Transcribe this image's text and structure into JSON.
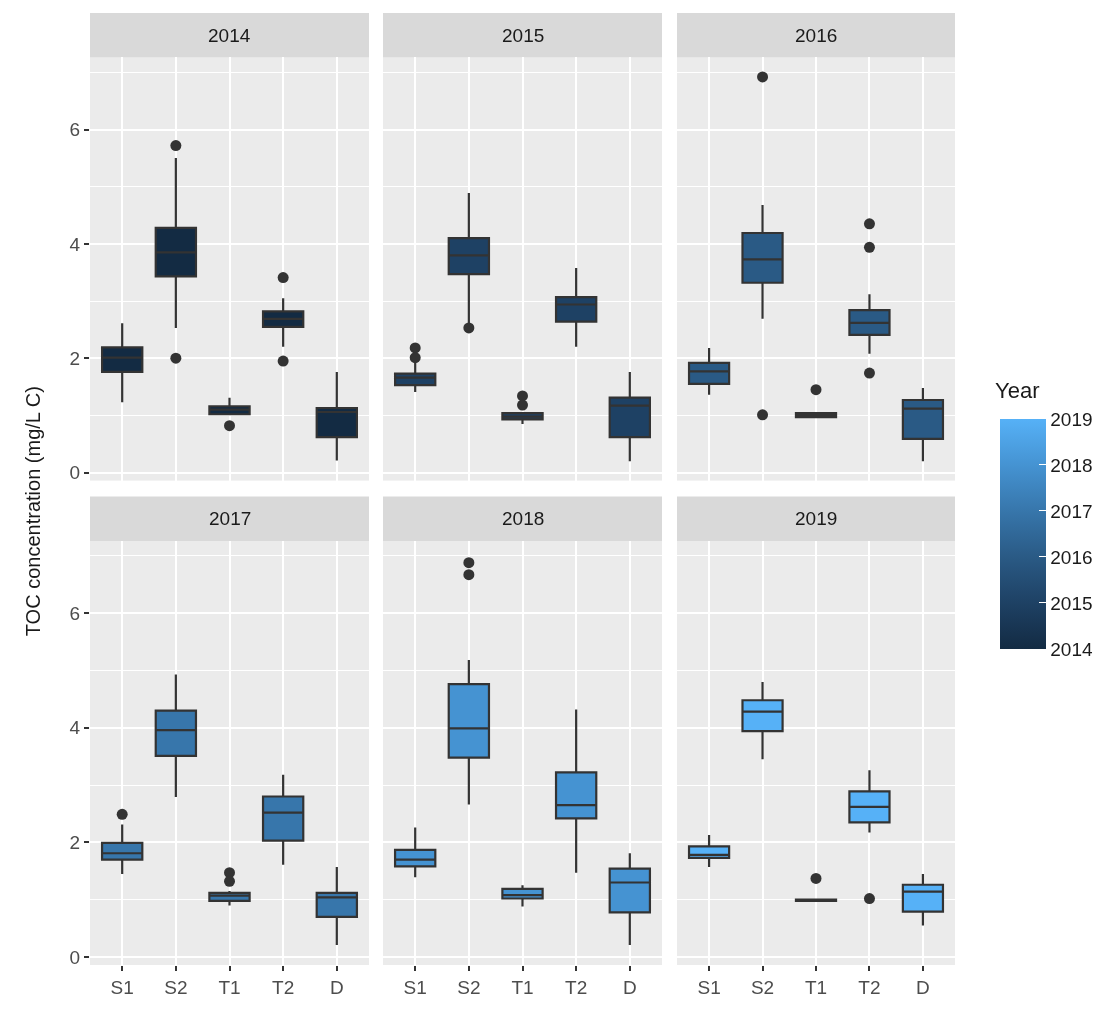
{
  "chart_data": [
    {
      "type": "box",
      "title": "2014",
      "ylabel": "TOC concentration (mg/L C)",
      "categories": [
        "S1",
        "S2",
        "T1",
        "T2",
        "D"
      ],
      "color": "#132b43",
      "boxes": [
        {
          "low": 1.23,
          "q1": 1.76,
          "median": 2.01,
          "q3": 2.19,
          "high": 2.61
        },
        {
          "low": 2.53,
          "q1": 3.43,
          "median": 3.85,
          "q3": 4.28,
          "high": 5.5,
          "outliers": [
            5.72,
            2.0
          ]
        },
        {
          "low": 1.02,
          "q1": 1.02,
          "median": 1.1,
          "q3": 1.16,
          "high": 1.31,
          "outliers": [
            0.82
          ]
        },
        {
          "low": 2.2,
          "q1": 2.55,
          "median": 2.69,
          "q3": 2.82,
          "high": 3.05,
          "outliers": [
            3.41,
            1.95
          ]
        },
        {
          "low": 0.21,
          "q1": 0.62,
          "median": 1.06,
          "q3": 1.13,
          "high": 1.76
        }
      ],
      "ylim": [
        -0.14,
        7.26
      ],
      "yticks": [
        0,
        {
          "value": 1,
          "label": null
        },
        2,
        {
          "value": 3,
          "label": null
        },
        4,
        {
          "value": 5,
          "label": null
        },
        6,
        {
          "value": 7,
          "label": null
        }
      ],
      "grid": true,
      "tick_labels": "y"
    },
    {
      "type": "box",
      "title": "2015",
      "categories": [
        "S1",
        "S2",
        "T1",
        "T2",
        "D"
      ],
      "color": "#1e4164",
      "boxes": [
        {
          "low": 1.41,
          "q1": 1.53,
          "median": 1.66,
          "q3": 1.73,
          "high": 1.93,
          "outliers": [
            2.18,
            2.01
          ]
        },
        {
          "low": 2.6,
          "q1": 3.47,
          "median": 3.8,
          "q3": 4.1,
          "high": 4.89,
          "outliers": [
            2.53
          ]
        },
        {
          "low": 0.85,
          "q1": 0.93,
          "median": 0.98,
          "q3": 1.04,
          "high": 1.04,
          "outliers": [
            1.34,
            1.18
          ]
        },
        {
          "low": 2.2,
          "q1": 2.64,
          "median": 2.94,
          "q3": 3.07,
          "high": 3.58
        },
        {
          "low": 0.2,
          "q1": 0.62,
          "median": 1.17,
          "q3": 1.31,
          "high": 1.76
        }
      ],
      "ylim": [
        -0.14,
        7.26
      ],
      "yticks": [
        0,
        {
          "value": 1,
          "label": null
        },
        2,
        {
          "value": 3,
          "label": null
        },
        4,
        {
          "value": 5,
          "label": null
        },
        6,
        {
          "value": 7,
          "label": null
        }
      ],
      "grid": true,
      "tick_labels": false
    },
    {
      "type": "box",
      "title": "2016",
      "categories": [
        "S1",
        "S2",
        "T1",
        "T2",
        "D"
      ],
      "color": "#2a5a85",
      "boxes": [
        {
          "low": 1.36,
          "q1": 1.55,
          "median": 1.77,
          "q3": 1.92,
          "high": 2.18
        },
        {
          "low": 2.69,
          "q1": 3.32,
          "median": 3.73,
          "q3": 4.19,
          "high": 4.68,
          "outliers": [
            6.92,
            1.01
          ]
        },
        {
          "low": 0.97,
          "q1": 0.97,
          "median": 1.01,
          "q3": 1.04,
          "high": 1.04,
          "outliers": [
            1.45
          ]
        },
        {
          "low": 2.08,
          "q1": 2.41,
          "median": 2.62,
          "q3": 2.84,
          "high": 3.12,
          "outliers": [
            4.35,
            3.94,
            1.74
          ]
        },
        {
          "low": 0.2,
          "q1": 0.59,
          "median": 1.12,
          "q3": 1.27,
          "high": 1.48
        }
      ],
      "ylim": [
        -0.14,
        7.26
      ],
      "yticks": [
        0,
        {
          "value": 1,
          "label": null
        },
        2,
        {
          "value": 3,
          "label": null
        },
        4,
        {
          "value": 5,
          "label": null
        },
        6,
        {
          "value": 7,
          "label": null
        }
      ],
      "grid": true,
      "tick_labels": false
    },
    {
      "type": "box",
      "title": "2017",
      "categories": [
        "S1",
        "S2",
        "T1",
        "T2",
        "D"
      ],
      "color": "#3776ab",
      "boxes": [
        {
          "low": 1.45,
          "q1": 1.7,
          "median": 1.81,
          "q3": 1.99,
          "high": 2.31,
          "outliers": [
            2.49
          ]
        },
        {
          "low": 2.79,
          "q1": 3.51,
          "median": 3.96,
          "q3": 4.3,
          "high": 4.93
        },
        {
          "low": 0.9,
          "q1": 0.98,
          "median": 1.07,
          "q3": 1.12,
          "high": 1.15,
          "outliers": [
            1.47,
            1.32
          ]
        },
        {
          "low": 1.61,
          "q1": 2.03,
          "median": 2.52,
          "q3": 2.8,
          "high": 3.18
        },
        {
          "low": 0.21,
          "q1": 0.7,
          "median": 1.04,
          "q3": 1.12,
          "high": 1.57
        }
      ],
      "ylim": [
        -0.14,
        7.26
      ],
      "yticks": [
        0,
        {
          "value": 1,
          "label": null
        },
        2,
        {
          "value": 3,
          "label": null
        },
        4,
        {
          "value": 5,
          "label": null
        },
        6,
        {
          "value": 7,
          "label": null
        }
      ],
      "grid": true
    },
    {
      "type": "box",
      "title": "2018",
      "categories": [
        "S1",
        "S2",
        "T1",
        "T2",
        "D"
      ],
      "color": "#4593d2",
      "boxes": [
        {
          "low": 1.39,
          "q1": 1.58,
          "median": 1.7,
          "q3": 1.87,
          "high": 2.26
        },
        {
          "low": 2.66,
          "q1": 3.48,
          "median": 3.99,
          "q3": 4.76,
          "high": 5.18,
          "outliers": [
            6.88,
            6.67
          ]
        },
        {
          "low": 0.88,
          "q1": 1.02,
          "median": 1.08,
          "q3": 1.19,
          "high": 1.25
        },
        {
          "low": 1.47,
          "q1": 2.42,
          "median": 2.65,
          "q3": 3.22,
          "high": 4.32
        },
        {
          "low": 0.21,
          "q1": 0.78,
          "median": 1.3,
          "q3": 1.54,
          "high": 1.81
        }
      ],
      "ylim": [
        -0.14,
        7.26
      ],
      "yticks": [
        0,
        {
          "value": 1,
          "label": null
        },
        2,
        {
          "value": 3,
          "label": null
        },
        4,
        {
          "value": 5,
          "label": null
        },
        6,
        {
          "value": 7,
          "label": null
        }
      ],
      "grid": true,
      "tick_labels": "x"
    },
    {
      "type": "box",
      "title": "2019",
      "categories": [
        "S1",
        "S2",
        "T1",
        "T2",
        "D"
      ],
      "color": "#56b1f7",
      "boxes": [
        {
          "low": 1.57,
          "q1": 1.73,
          "median": 1.78,
          "q3": 1.93,
          "high": 2.13
        },
        {
          "low": 3.45,
          "q1": 3.94,
          "median": 4.28,
          "q3": 4.48,
          "high": 4.8
        },
        {
          "low": 0.98,
          "q1": 0.98,
          "median": 0.99,
          "q3": 1.0,
          "high": 1.0,
          "outliers": [
            1.37
          ]
        },
        {
          "low": 2.17,
          "q1": 2.35,
          "median": 2.62,
          "q3": 2.89,
          "high": 3.26,
          "outliers": [
            1.02
          ]
        },
        {
          "low": 0.55,
          "q1": 0.79,
          "median": 1.14,
          "q3": 1.26,
          "high": 1.45
        }
      ],
      "ylim": [
        -0.14,
        7.26
      ],
      "yticks": [
        0,
        {
          "value": 1,
          "label": null
        },
        2,
        {
          "value": 3,
          "label": null
        },
        4,
        {
          "value": 5,
          "label": null
        },
        6,
        {
          "value": 7,
          "label": null
        }
      ],
      "grid": true,
      "tick_labels": "x",
      "clabel": "Year",
      "clim": [
        2014,
        2019
      ],
      "cticks": [
        2014,
        2015,
        2016,
        2017,
        2018,
        2019
      ]
    }
  ]
}
